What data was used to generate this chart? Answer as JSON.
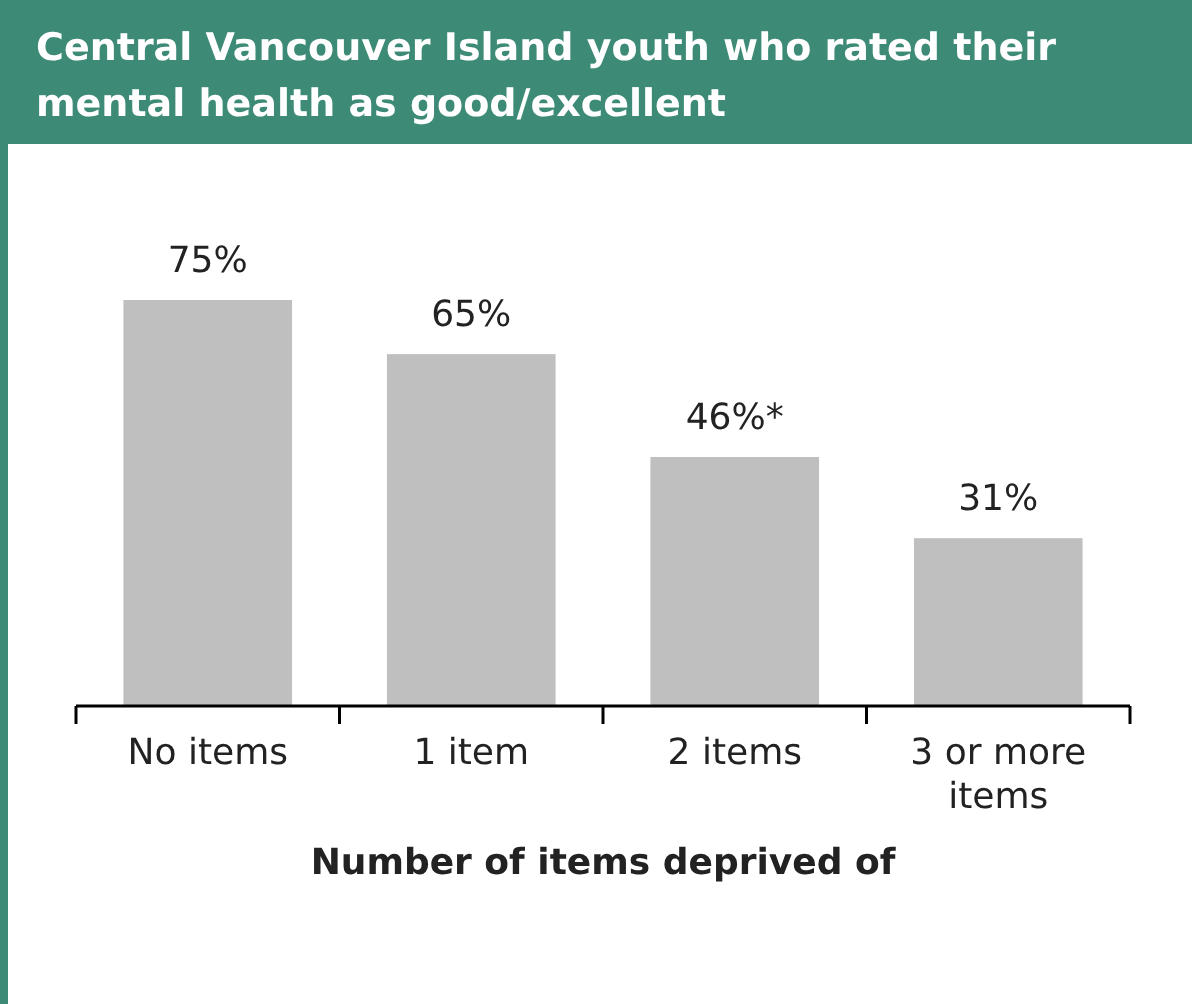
{
  "chart_data": {
    "type": "bar",
    "title": "Central Vancouver Island youth who rated their mental health as good/excellent",
    "xlabel": "Number of items deprived of",
    "categories": [
      "No items",
      "1 item",
      "2 items",
      "3 or more items"
    ],
    "values": [
      75,
      65,
      46,
      31
    ],
    "color": "#bfbfbf",
    "data_labels": true,
    "value_labels": [
      "75%",
      "65%",
      "46%*",
      "31%"
    ]
  }
}
